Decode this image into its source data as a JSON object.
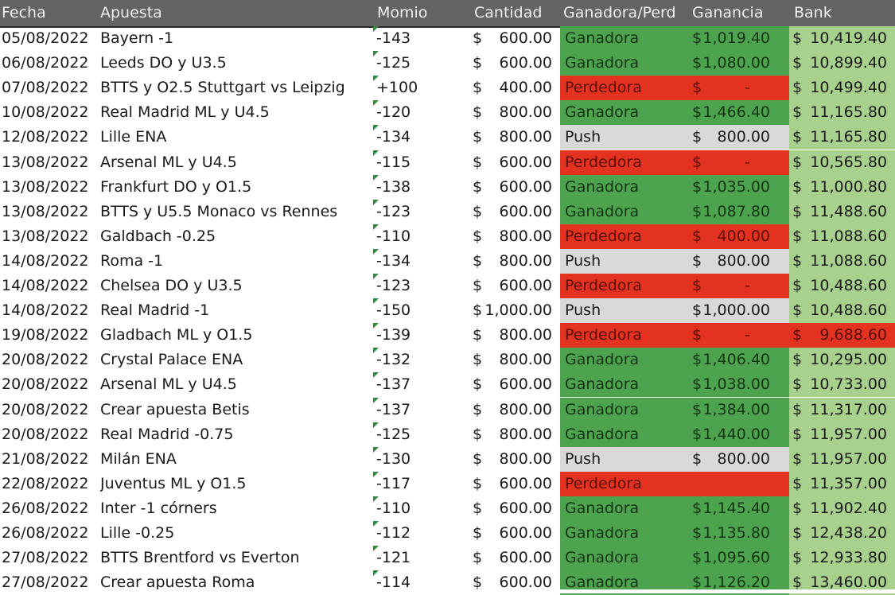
{
  "header": {
    "fecha": "Fecha",
    "apuesta": "Apuesta",
    "momio": "Momio",
    "cantidad": "Cantidad",
    "resultado": "Ganadora/Perd",
    "ganancia": "Ganancia",
    "bank": "Bank"
  },
  "currency_symbol": "$",
  "colors": {
    "ganadora": "#4ea34f",
    "perdedora": "#e3321f",
    "push": "#d9d9d9",
    "bank": "#a9d18e",
    "header": "#636363"
  },
  "rows": [
    {
      "fecha": "05/08/2022",
      "apuesta": "Bayern -1",
      "momio": "-143",
      "cantidad": "600.00",
      "resultado": "Ganadora",
      "status": "win",
      "ganancia": "1,019.40",
      "bank": "10,419.40",
      "bank_status": "normal"
    },
    {
      "fecha": "06/08/2022",
      "apuesta": "Leeds DO y U3.5",
      "momio": "-125",
      "cantidad": "600.00",
      "resultado": "Ganadora",
      "status": "win",
      "ganancia": "1,080.00",
      "bank": "10,899.40",
      "bank_status": "normal"
    },
    {
      "fecha": "07/08/2022",
      "apuesta": "BTTS y O2.5 Stuttgart vs Leipzig",
      "momio": "+100",
      "cantidad": "400.00",
      "resultado": "Perdedora",
      "status": "lose",
      "ganancia": "-",
      "bank": "10,499.40",
      "bank_status": "normal"
    },
    {
      "fecha": "10/08/2022",
      "apuesta": "Real Madrid ML y U4.5",
      "momio": "-120",
      "cantidad": "800.00",
      "resultado": "Ganadora",
      "status": "win",
      "ganancia": "1,466.40",
      "bank": "11,165.80",
      "bank_status": "normal"
    },
    {
      "fecha": "12/08/2022",
      "apuesta": "Lille ENA",
      "momio": "-134",
      "cantidad": "800.00",
      "resultado": "Push",
      "status": "push",
      "ganancia": "800.00",
      "bank": "11,165.80",
      "bank_status": "normal"
    },
    {
      "fecha": "13/08/2022",
      "apuesta": "Arsenal ML y U4.5",
      "momio": "-115",
      "cantidad": "600.00",
      "resultado": "Perdedora",
      "status": "lose",
      "ganancia": "-",
      "bank": "10,565.80",
      "bank_status": "normal"
    },
    {
      "fecha": "13/08/2022",
      "apuesta": "Frankfurt DO y O1.5",
      "momio": "-138",
      "cantidad": "600.00",
      "resultado": "Ganadora",
      "status": "win",
      "ganancia": "1,035.00",
      "bank": "11,000.80",
      "bank_status": "normal"
    },
    {
      "fecha": "13/08/2022",
      "apuesta": "BTTS y U5.5 Monaco vs Rennes",
      "momio": "-123",
      "cantidad": "600.00",
      "resultado": "Ganadora",
      "status": "win",
      "ganancia": "1,087.80",
      "bank": "11,488.60",
      "bank_status": "normal"
    },
    {
      "fecha": "13/08/2022",
      "apuesta": "Galdbach -0.25",
      "momio": "-110",
      "cantidad": "800.00",
      "resultado": "Perdedora",
      "status": "lose",
      "ganancia": "400.00",
      "bank": "11,088.60",
      "bank_status": "normal"
    },
    {
      "fecha": "14/08/2022",
      "apuesta": "Roma -1",
      "momio": "-134",
      "cantidad": "800.00",
      "resultado": "Push",
      "status": "push",
      "ganancia": "800.00",
      "bank": "11,088.60",
      "bank_status": "normal"
    },
    {
      "fecha": "14/08/2022",
      "apuesta": "Chelsea DO y U3.5",
      "momio": "-123",
      "cantidad": "600.00",
      "resultado": "Perdedora",
      "status": "lose",
      "ganancia": "-",
      "bank": "10,488.60",
      "bank_status": "normal"
    },
    {
      "fecha": "14/08/2022",
      "apuesta": "Real Madrid -1",
      "momio": "-150",
      "cantidad": "1,000.00",
      "resultado": "Push",
      "status": "push",
      "ganancia": "1,000.00",
      "bank": "10,488.60",
      "bank_status": "normal"
    },
    {
      "fecha": "19/08/2022",
      "apuesta": "Gladbach ML y O1.5",
      "momio": "-139",
      "cantidad": "800.00",
      "resultado": "Perdedora",
      "status": "lose",
      "ganancia": "-",
      "bank": "9,688.60",
      "bank_status": "neg"
    },
    {
      "fecha": "20/08/2022",
      "apuesta": "Crystal Palace ENA",
      "momio": "-132",
      "cantidad": "800.00",
      "resultado": "Ganadora",
      "status": "win",
      "ganancia": "1,406.40",
      "bank": "10,295.00",
      "bank_status": "normal"
    },
    {
      "fecha": "20/08/2022",
      "apuesta": "Arsenal ML y U4.5",
      "momio": "-137",
      "cantidad": "600.00",
      "resultado": "Ganadora",
      "status": "win",
      "ganancia": "1,038.00",
      "bank": "10,733.00",
      "bank_status": "normal"
    },
    {
      "fecha": "20/08/2022",
      "apuesta": "Crear apuesta Betis",
      "momio": "-137",
      "cantidad": "800.00",
      "resultado": "Ganadora",
      "status": "win",
      "ganancia": "1,384.00",
      "bank": "11,317.00",
      "bank_status": "normal"
    },
    {
      "fecha": "20/08/2022",
      "apuesta": "Real Madrid -0.75",
      "momio": "-125",
      "cantidad": "800.00",
      "resultado": "Ganadora",
      "status": "win",
      "ganancia": "1,440.00",
      "bank": "11,957.00",
      "bank_status": "normal"
    },
    {
      "fecha": "21/08/2022",
      "apuesta": "Milán ENA",
      "momio": "-130",
      "cantidad": "800.00",
      "resultado": "Push",
      "status": "push",
      "ganancia": "800.00",
      "bank": "11,957.00",
      "bank_status": "normal"
    },
    {
      "fecha": "22/08/2022",
      "apuesta": "Juventus ML y O1.5",
      "momio": "-117",
      "cantidad": "600.00",
      "resultado": "Perdedora",
      "status": "lose",
      "ganancia": "",
      "bank": "11,357.00",
      "bank_status": "normal"
    },
    {
      "fecha": "26/08/2022",
      "apuesta": "Inter -1 córners",
      "momio": "-110",
      "cantidad": "600.00",
      "resultado": "Ganadora",
      "status": "win",
      "ganancia": "1,145.40",
      "bank": "11,902.40",
      "bank_status": "normal"
    },
    {
      "fecha": "26/08/2022",
      "apuesta": "Lille -0.25",
      "momio": "-112",
      "cantidad": "600.00",
      "resultado": "Ganadora",
      "status": "win",
      "ganancia": "1,135.80",
      "bank": "12,438.20",
      "bank_status": "normal"
    },
    {
      "fecha": "27/08/2022",
      "apuesta": "BTTS Brentford vs Everton",
      "momio": "-121",
      "cantidad": "600.00",
      "resultado": "Ganadora",
      "status": "win",
      "ganancia": "1,095.60",
      "bank": "12,933.80",
      "bank_status": "normal"
    },
    {
      "fecha": "27/08/2022",
      "apuesta": "Crear apuesta Roma",
      "momio": "-114",
      "cantidad": "600.00",
      "resultado": "Ganadora",
      "status": "win",
      "ganancia": "1,126.20",
      "bank": "13,460.00",
      "bank_status": "normal"
    }
  ]
}
